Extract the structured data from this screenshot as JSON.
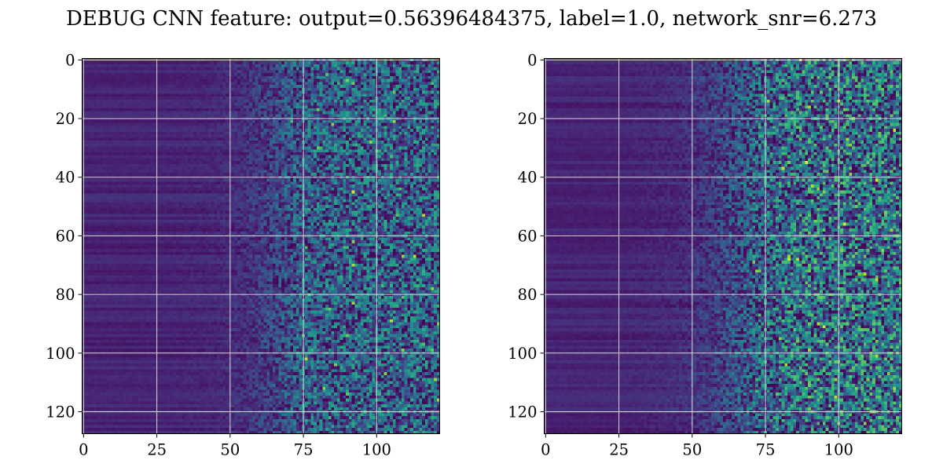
{
  "figure": {
    "title": "DEBUG CNN feature: output=0.56396484375, label=1.0, network_snr=6.273"
  },
  "colors": {
    "grid": "#d8d8d8",
    "axes": "#000000",
    "viridis": [
      "#440154",
      "#472c7a",
      "#3b518b",
      "#2c718e",
      "#21908d",
      "#27ad81",
      "#5cc863",
      "#aadc32",
      "#fde725"
    ]
  },
  "chart_data": [
    {
      "type": "heatmap",
      "title": "",
      "xlabel": "",
      "ylabel": "",
      "rows": 128,
      "cols": 122,
      "xlim": [
        -0.5,
        121.5
      ],
      "ylim": [
        127.5,
        -0.5
      ],
      "xticks": [
        0,
        25,
        50,
        75,
        100
      ],
      "xtick_labels": [
        "0",
        "25",
        "50",
        "75",
        "100"
      ],
      "yticks": [
        0,
        20,
        40,
        60,
        80,
        100,
        120
      ],
      "ytick_labels": [
        "0",
        "20",
        "40",
        "60",
        "80",
        "100",
        "120"
      ],
      "grid": true,
      "colormap": "viridis",
      "value_range": [
        0,
        1
      ],
      "profile_description": "values near 0.1 for columns 0-50, rising through columns 50-75 to noisy 0.15-0.6 with sparse peaks near 1.0 for columns 75-121",
      "column_profile": {
        "cols": [
          0,
          25,
          45,
          55,
          65,
          75,
          90,
          121
        ],
        "mean": [
          0.1,
          0.1,
          0.11,
          0.14,
          0.2,
          0.27,
          0.3,
          0.3
        ]
      },
      "peaks": [
        {
          "col": 92,
          "row": 45,
          "value": 0.95
        },
        {
          "col": 105,
          "row": 89,
          "value": 0.9
        },
        {
          "col": 76,
          "row": 102,
          "value": 0.9
        },
        {
          "col": 92,
          "row": 70,
          "value": 0.88
        },
        {
          "col": 92,
          "row": 62,
          "value": 0.8
        },
        {
          "col": 92,
          "row": 83,
          "value": 0.85
        },
        {
          "col": 86,
          "row": 104,
          "value": 0.8
        },
        {
          "col": 116,
          "row": 97,
          "value": 0.72
        }
      ]
    },
    {
      "type": "heatmap",
      "title": "",
      "xlabel": "",
      "ylabel": "",
      "rows": 128,
      "cols": 122,
      "xlim": [
        -0.5,
        121.5
      ],
      "ylim": [
        127.5,
        -0.5
      ],
      "xticks": [
        0,
        25,
        50,
        75,
        100
      ],
      "xtick_labels": [
        "0",
        "25",
        "50",
        "75",
        "100"
      ],
      "yticks": [
        0,
        20,
        40,
        60,
        80,
        100,
        120
      ],
      "ytick_labels": [
        "0",
        "20",
        "40",
        "60",
        "80",
        "100",
        "120"
      ],
      "grid": true,
      "colormap": "viridis",
      "value_range": [
        0,
        1
      ],
      "profile_description": "values near 0.1 for columns 0-50, rising through columns 50-75 to noisy 0.2-0.65 with frequent peaks near 1.0 for columns 75-121",
      "column_profile": {
        "cols": [
          0,
          25,
          45,
          55,
          65,
          75,
          90,
          121
        ],
        "mean": [
          0.1,
          0.1,
          0.12,
          0.16,
          0.23,
          0.31,
          0.35,
          0.35
        ]
      },
      "peaks": [
        {
          "col": 113,
          "row": 41,
          "value": 0.95
        },
        {
          "col": 83,
          "row": 68,
          "value": 0.92
        },
        {
          "col": 86,
          "row": 68,
          "value": 0.9
        },
        {
          "col": 109,
          "row": 73,
          "value": 0.9
        },
        {
          "col": 102,
          "row": 0,
          "value": 0.85
        },
        {
          "col": 90,
          "row": 16,
          "value": 0.85
        },
        {
          "col": 100,
          "row": 14,
          "value": 0.9
        },
        {
          "col": 82,
          "row": 104,
          "value": 0.88
        },
        {
          "col": 90,
          "row": 99,
          "value": 0.85
        },
        {
          "col": 108,
          "row": 101,
          "value": 0.8
        },
        {
          "col": 95,
          "row": 45,
          "value": 0.82
        },
        {
          "col": 92,
          "row": 55,
          "value": 0.8
        },
        {
          "col": 73,
          "row": 87,
          "value": 0.75
        },
        {
          "col": 86,
          "row": 96,
          "value": 0.78
        },
        {
          "col": 100,
          "row": 124,
          "value": 0.8
        },
        {
          "col": 108,
          "row": 1,
          "value": 0.75
        },
        {
          "col": 116,
          "row": 52,
          "value": 0.8
        },
        {
          "col": 102,
          "row": 76,
          "value": 0.75
        }
      ]
    }
  ]
}
